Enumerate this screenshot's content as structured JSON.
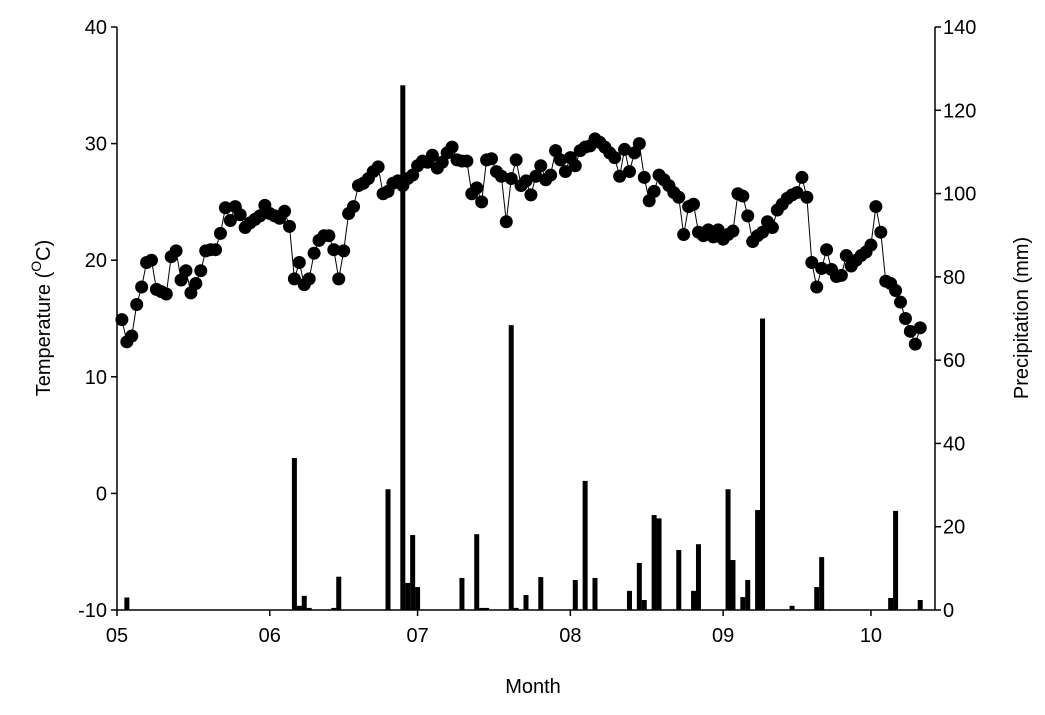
{
  "chart_data": {
    "type": "line-bar",
    "xlabel": "Month",
    "ylabel": [
      "Temperature (",
      "O",
      "C)"
    ],
    "y2label": "Precipitation (mm)",
    "xlim": [
      0,
      166
    ],
    "xticks": [
      {
        "value": 0,
        "label": "05"
      },
      {
        "value": 31,
        "label": "06"
      },
      {
        "value": 61,
        "label": "07"
      },
      {
        "value": 92,
        "label": "08"
      },
      {
        "value": 123,
        "label": "09"
      },
      {
        "value": 153,
        "label": "10"
      }
    ],
    "ylim": [
      -10,
      40
    ],
    "yticks": [
      -10,
      0,
      10,
      20,
      30,
      40
    ],
    "y2lim": [
      0,
      140
    ],
    "y2ticks": [
      0,
      20,
      40,
      60,
      80,
      100,
      120,
      140
    ],
    "series": [
      {
        "type": "line",
        "color": "#000000",
        "x": [
          1,
          2,
          3,
          4,
          5,
          6,
          7,
          8,
          9,
          10,
          11,
          12,
          13,
          14,
          15,
          16,
          17,
          18,
          19,
          20,
          21,
          22,
          23,
          24,
          25,
          26,
          27,
          28,
          29,
          30,
          31,
          32,
          33,
          34,
          35,
          36,
          37,
          38,
          39,
          40,
          41,
          42,
          43,
          44,
          45,
          46,
          47,
          48,
          49,
          50,
          51,
          52,
          53,
          54,
          55,
          56,
          57,
          58,
          59,
          60,
          61,
          62,
          63,
          64,
          65,
          66,
          67,
          68,
          69,
          70,
          71,
          72,
          73,
          74,
          75,
          76,
          77,
          78,
          79,
          80,
          81,
          82,
          83,
          84,
          85,
          86,
          87,
          88,
          89,
          90,
          91,
          92,
          93,
          94,
          95,
          96,
          97,
          98,
          99,
          100,
          101,
          102,
          103,
          104,
          105,
          106,
          107,
          108,
          109,
          110,
          111,
          112,
          113,
          114,
          115,
          116,
          117,
          118,
          119,
          120,
          121,
          122,
          123,
          124,
          125,
          126,
          127,
          128,
          129,
          130,
          131,
          132,
          133,
          134,
          135,
          136,
          137,
          138,
          139,
          140,
          141,
          142,
          143,
          144,
          145,
          146,
          147,
          148,
          149,
          150,
          151,
          152,
          153,
          154,
          155,
          156,
          157,
          158,
          159,
          160,
          161,
          162,
          163
        ],
        "values": [
          14.9,
          13,
          13.5,
          16.2,
          17.7,
          19.8,
          20.0,
          17.5,
          17.3,
          17.1,
          20.3,
          20.8,
          18.3,
          19.1,
          17.2,
          18.0,
          19.1,
          20.8,
          20.9,
          20.9,
          22.3,
          24.5,
          23.4,
          24.6,
          23.9,
          22.8,
          23.2,
          23.5,
          23.8,
          24.7,
          24.0,
          23.8,
          23.6,
          24.2,
          22.9,
          18.4,
          19.8,
          17.9,
          18.4,
          20.6,
          21.7,
          22.1,
          22.1,
          20.9,
          18.4,
          20.8,
          24.0,
          24.6,
          26.4,
          26.6,
          27.0,
          27.6,
          28.0,
          25.7,
          25.9,
          26.6,
          26.8,
          26.4,
          27.0,
          27.3,
          28.1,
          28.5,
          28.4,
          29.0,
          27.9,
          28.4,
          29.2,
          29.7,
          28.6,
          28.5,
          28.5,
          25.7,
          26.2,
          25.0,
          28.6,
          28.7,
          27.6,
          27.2,
          23.3,
          27.0,
          28.6,
          26.4,
          26.8,
          25.6,
          27.2,
          28.1,
          26.9,
          27.3,
          29.4,
          28.6,
          27.6,
          28.8,
          28.1,
          29.4,
          29.7,
          29.8,
          30.4,
          30.1,
          29.7,
          29.2,
          28.8,
          27.2,
          29.5,
          27.6,
          29.2,
          30.0,
          27.1,
          25.1,
          25.9,
          27.3,
          26.9,
          26.4,
          25.8,
          25.4,
          22.2,
          24.6,
          24.8,
          22.4,
          22.1,
          22.6,
          22.0,
          22.6,
          21.8,
          22.2,
          22.5,
          25.7,
          25.5,
          23.8,
          21.6,
          22.1,
          22.4,
          23.3,
          22.8,
          24.3,
          24.8,
          25.3,
          25.6,
          25.8,
          27.1,
          25.4,
          19.8,
          17.7,
          19.3,
          20.9,
          19.2,
          18.6,
          18.7,
          20.4,
          19.5,
          20.0,
          20.4,
          20.7,
          21.3,
          24.6,
          22.4,
          18.2,
          18.0,
          17.4,
          16.4,
          15.0,
          13.9,
          12.8,
          14.2
        ]
      },
      {
        "type": "bar",
        "axis": "y2",
        "color": "#000000",
        "x": [
          2,
          36,
          37,
          38,
          39,
          44,
          45,
          55,
          58,
          59,
          60,
          61,
          70,
          73,
          74,
          75,
          80,
          81,
          83,
          86,
          93,
          95,
          97,
          104,
          106,
          107,
          109,
          110,
          114,
          117,
          118,
          124,
          125,
          127,
          128,
          130,
          131,
          137,
          142,
          143,
          157,
          158,
          163
        ],
        "values": [
          3,
          36.5,
          1,
          3.4,
          0.5,
          0.5,
          8,
          29,
          126,
          6.5,
          18,
          5.5,
          7.7,
          18.2,
          0.5,
          0.5,
          68.4,
          0.5,
          3.6,
          7.9,
          7.2,
          31,
          7.7,
          4.6,
          11.3,
          2.4,
          22.8,
          22,
          14.4,
          4.6,
          15.8,
          29,
          12,
          3.1,
          7.2,
          24,
          70,
          1,
          5.5,
          12.7,
          2.9,
          23.8,
          2.4
        ]
      }
    ]
  }
}
